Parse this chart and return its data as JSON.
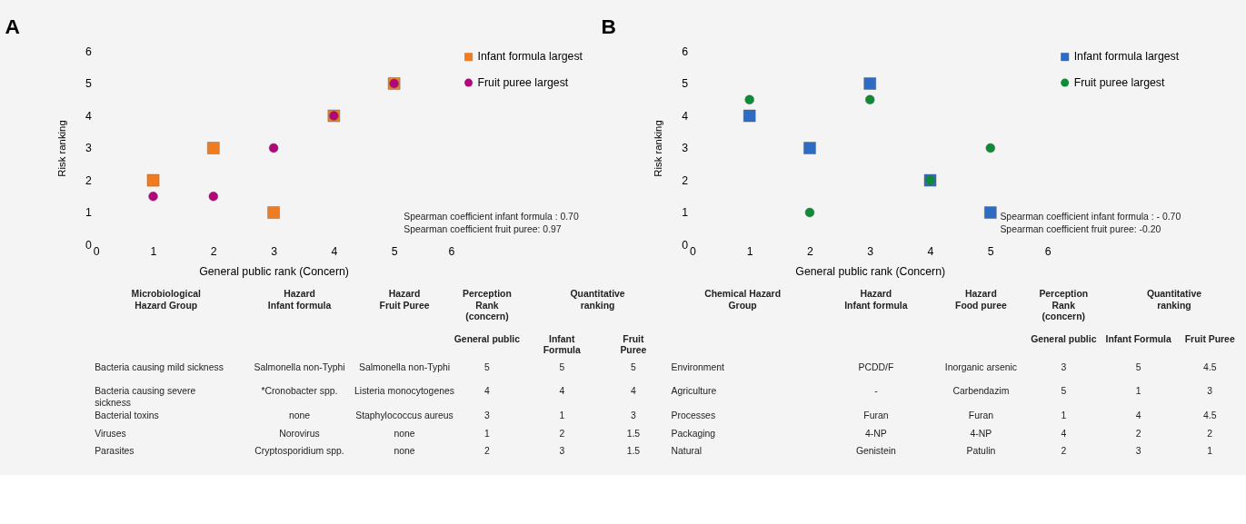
{
  "chart_data": [
    {
      "type": "scatter",
      "title": "A",
      "xlabel": "General public rank (Concern)",
      "ylabel": "Risk ranking",
      "x": [
        1,
        2,
        3,
        4,
        5
      ],
      "xlim": [
        0,
        6
      ],
      "xticks": [
        0,
        1,
        2,
        3,
        4,
        5,
        6
      ],
      "ylim": [
        0,
        6
      ],
      "yticks": [
        0,
        1,
        2,
        3,
        4,
        5,
        6
      ],
      "legend": "right",
      "series": [
        {
          "name": "Infant formula largest",
          "color": "#f07c22",
          "marker": "square",
          "values": [
            2,
            3,
            1,
            4,
            5
          ]
        },
        {
          "name": "Fruit puree largest",
          "color": "#b0087a",
          "marker": "circle",
          "values": [
            1.5,
            1.5,
            3,
            4,
            5
          ]
        }
      ],
      "annotations": [
        "Spearman coefficient infant formula : 0.70",
        "Spearman coefficient fruit puree:  0.97"
      ]
    },
    {
      "type": "scatter",
      "title": "B",
      "xlabel": "General public rank (Concern)",
      "ylabel": "Risk ranking",
      "x": [
        1,
        2,
        3,
        4,
        5
      ],
      "xlim": [
        0,
        6
      ],
      "xticks": [
        0,
        1,
        2,
        3,
        4,
        5,
        6
      ],
      "ylim": [
        0,
        6
      ],
      "yticks": [
        0,
        1,
        2,
        3,
        4,
        5,
        6
      ],
      "legend": "right",
      "series": [
        {
          "name": "Infant formula largest",
          "color": "#2e6cc4",
          "marker": "square",
          "values": [
            4,
            3,
            5,
            2,
            1
          ]
        },
        {
          "name": "Fruit puree largest",
          "color": "#0c8c34",
          "marker": "circle",
          "values": [
            4.5,
            1,
            4.5,
            2,
            3
          ]
        }
      ],
      "annotations": [
        "Spearman coefficient infant formula : - 0.70",
        "Spearman coefficient fruit puree:  -0.20"
      ]
    },
    {
      "type": "other",
      "annotations": [
        "Microbiological\nHazard Group",
        "Hazard\nInfant formula",
        "Hazard\nFruit Puree",
        "Perception\nRank\n(concern)",
        "Quantitative\nranking",
        null,
        null,
        null,
        null,
        "General public",
        "Infant\nFormula",
        "Fruit\nPuree",
        "Bacteria causing mild sickness",
        "Salmonella non-Typhi",
        "Salmonella non-Typhi",
        "5",
        "5",
        "5",
        "Bacteria causing severe\nsickness",
        "*Cronobacter spp.",
        "Listeria monocytogenes",
        "4",
        "4",
        "4",
        "Bacterial toxins",
        "none",
        "Staphylococcus aureus",
        "3",
        "1",
        "3",
        "Viruses",
        "Norovirus",
        "none",
        "1",
        "2",
        "1.5",
        "Parasites",
        "Cryptosporidium spp.",
        "none",
        "2",
        "3",
        "1.5"
      ]
    },
    {
      "type": "other",
      "annotations": [
        "Chemical Hazard\nGroup",
        "Hazard\nInfant formula",
        "Hazard\nFood puree",
        "Perception\nRank\n(concern)",
        "Quantitative\nranking",
        null,
        null,
        null,
        null,
        "General public",
        "Infant Formula",
        "Fruit Puree",
        "Environment",
        "PCDD/F",
        "Inorganic arsenic",
        "3",
        "5",
        "4.5",
        "Agriculture",
        "-",
        "Carbendazim",
        "5",
        "1",
        "3",
        "Processes",
        "Furan",
        "Furan",
        "1",
        "4",
        "4.5",
        "Packaging",
        "4-NP",
        "4-NP",
        "4",
        "2",
        "2",
        "Natural",
        "Genistein",
        "Patulin",
        "2",
        "3",
        "1"
      ]
    }
  ]
}
